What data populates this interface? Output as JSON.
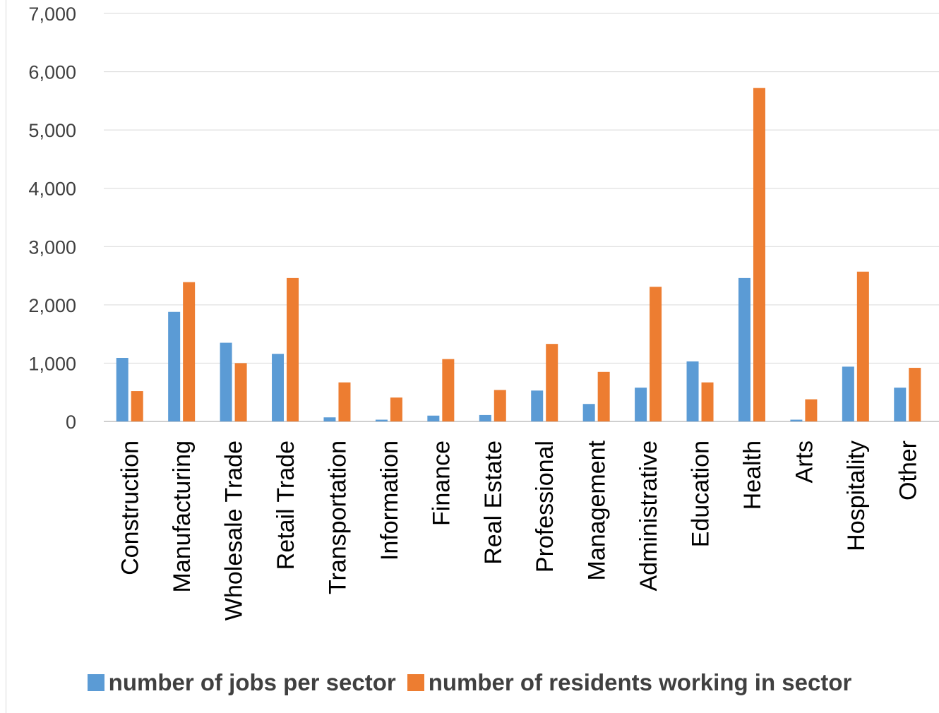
{
  "chart_data": {
    "type": "bar",
    "categories": [
      "Construction",
      "Manufacturing",
      "Wholesale Trade",
      "Retail Trade",
      "Transportation",
      "Information",
      "Finance",
      "Real Estate",
      "Professional",
      "Management",
      "Administrative",
      "Education",
      "Health",
      "Arts",
      "Hospitality",
      "Other"
    ],
    "series": [
      {
        "name": "number of jobs per sector",
        "color": "#5b9bd5",
        "values": [
          1090,
          1880,
          1350,
          1160,
          70,
          30,
          100,
          110,
          530,
          300,
          580,
          1030,
          2460,
          30,
          940,
          580
        ]
      },
      {
        "name": "number of residents working in sector",
        "color": "#ed7d31",
        "values": [
          520,
          2390,
          1000,
          2460,
          670,
          410,
          1070,
          540,
          1330,
          850,
          2310,
          670,
          5720,
          380,
          2570,
          920
        ]
      }
    ],
    "yticks": [
      "0",
      "1,000",
      "2,000",
      "3,000",
      "4,000",
      "5,000",
      "6,000",
      "7,000"
    ],
    "ylim": [
      0,
      7000
    ],
    "grid": true,
    "legend_position": "bottom"
  }
}
